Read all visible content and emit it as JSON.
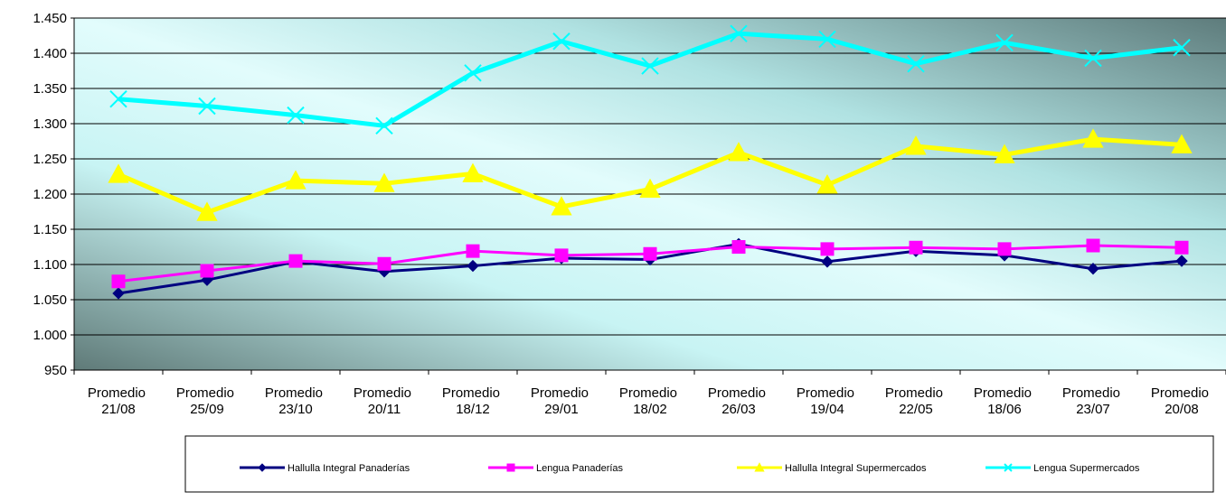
{
  "chart_data": {
    "type": "line",
    "categories": [
      "Promedio 21/08",
      "Promedio 25/09",
      "Promedio 23/10",
      "Promedio 20/11",
      "Promedio 18/12",
      "Promedio 29/01",
      "Promedio 18/02",
      "Promedio 26/03",
      "Promedio 19/04",
      "Promedio 22/05",
      "Promedio 18/06",
      "Promedio 23/07",
      "Promedio 20/08"
    ],
    "series": [
      {
        "name": "Hallulla Integral Panaderías",
        "color": "#000080",
        "marker": "diamond",
        "values": [
          1059,
          1078,
          1104,
          1090,
          1098,
          1109,
          1107,
          1129,
          1104,
          1119,
          1113,
          1094,
          1105
        ]
      },
      {
        "name": "Lengua Panaderías",
        "color": "#ff00ff",
        "marker": "square",
        "values": [
          1076,
          1091,
          1105,
          1101,
          1119,
          1113,
          1115,
          1125,
          1122,
          1124,
          1122,
          1127,
          1124
        ]
      },
      {
        "name": "Hallulla Integral Supermercados",
        "color": "#ffff00",
        "marker": "triangle",
        "values": [
          1228,
          1174,
          1219,
          1215,
          1229,
          1182,
          1207,
          1259,
          1213,
          1268,
          1256,
          1278,
          1270
        ]
      },
      {
        "name": "Lengua Supermercados",
        "color": "#00ffff",
        "marker": "x",
        "values": [
          1335,
          1325,
          1312,
          1297,
          1372,
          1417,
          1382,
          1428,
          1420,
          1385,
          1415,
          1393,
          1408
        ]
      }
    ],
    "ylim": [
      950,
      1450
    ],
    "yticks": [
      950,
      {
        "value": 1000,
        "label": "1.000"
      },
      {
        "value": 1050,
        "label": "1.050"
      },
      {
        "value": 1100,
        "label": "1.100"
      },
      {
        "value": 1150,
        "label": "1.150"
      },
      {
        "value": 1200,
        "label": "1.200"
      },
      {
        "value": 1250,
        "label": "1.250"
      },
      {
        "value": 1300,
        "label": "1.300"
      },
      {
        "value": 1350,
        "label": "1.350"
      },
      {
        "value": 1400,
        "label": "1.400"
      },
      {
        "value": 1450,
        "label": "1.450"
      }
    ],
    "grid": true,
    "legend": "bottom"
  }
}
